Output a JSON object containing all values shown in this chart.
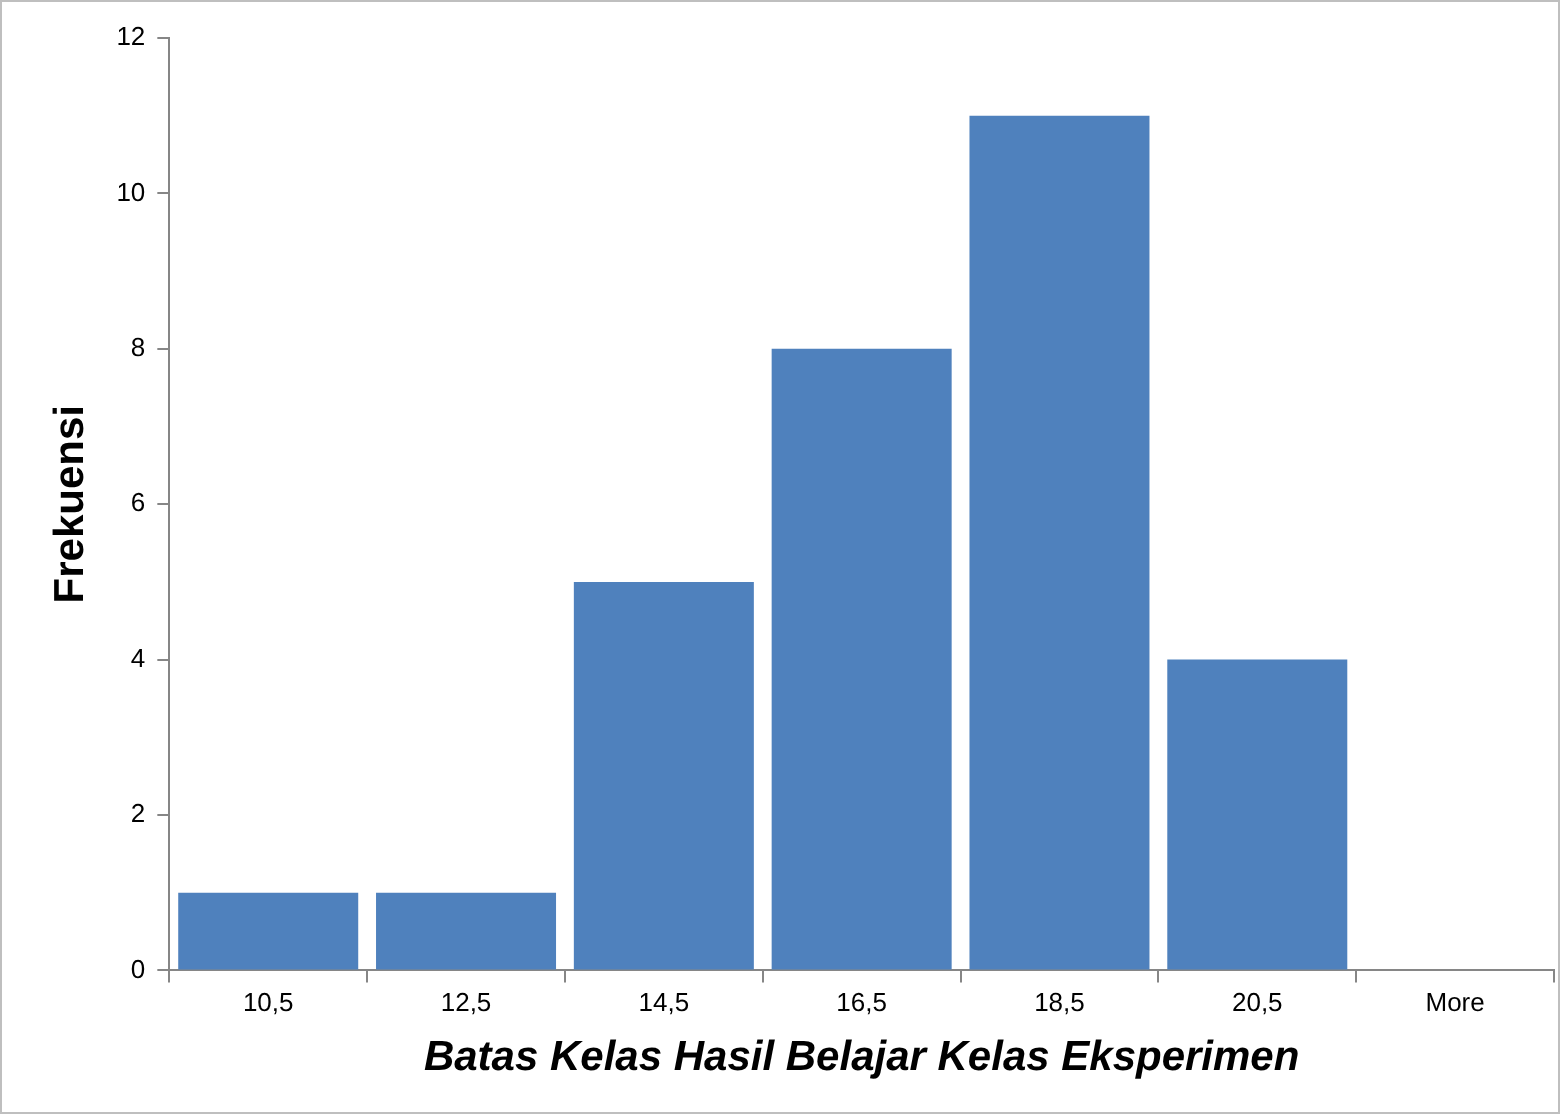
{
  "chart_data": {
    "type": "bar",
    "xlabel": "Batas Kelas Hasil Belajar Kelas Eksperimen",
    "ylabel": "Frekuensi",
    "categories": [
      "10,5",
      "12,5",
      "14,5",
      "16,5",
      "18,5",
      "20,5",
      "More"
    ],
    "values": [
      1,
      1,
      5,
      8,
      11,
      4,
      0
    ],
    "color": "#4f81bd",
    "ylim": [
      0,
      12
    ],
    "yticks": [
      0,
      2,
      4,
      6,
      8,
      10,
      12
    ],
    "grid": false,
    "legend": false
  }
}
